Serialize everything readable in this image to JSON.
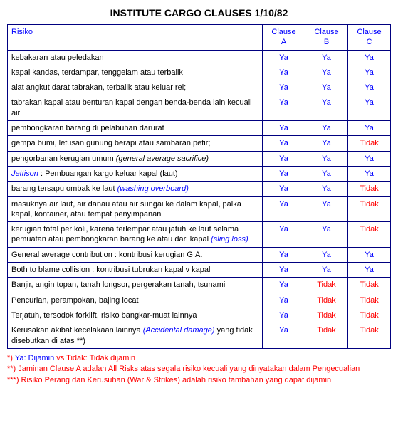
{
  "title": "INSTITUTE CARGO CLAUSES 1/10/82",
  "headers": {
    "risk": "Risiko",
    "clauseA": "Clause A",
    "clauseB": "Clause B",
    "clauseC": "Clause C"
  },
  "values": {
    "ya": "Ya",
    "tidak": "Tidak"
  },
  "rows": [
    {
      "risk_plain": "kebakaran atau peledakan",
      "a": "Ya",
      "b": "Ya",
      "c": "Ya"
    },
    {
      "risk_plain": "kapal kandas, terdampar, tenggelam atau terbalik",
      "a": "Ya",
      "b": "Ya",
      "c": "Ya"
    },
    {
      "risk_plain": "alat angkut darat tabrakan, terbalik atau keluar rel;",
      "a": "Ya",
      "b": "Ya",
      "c": "Ya"
    },
    {
      "risk_plain": "tabrakan kapal atau benturan kapal dengan benda-benda lain kecuali air",
      "a": "Ya",
      "b": "Ya",
      "c": "Ya"
    },
    {
      "risk_plain": "pembongkaran barang di pelabuhan darurat",
      "a": "Ya",
      "b": "Ya",
      "c": "Ya"
    },
    {
      "risk_plain": "gempa bumi, letusan gunung berapi atau sambaran petir;",
      "a": "Ya",
      "b": "Ya",
      "c": "Tidak"
    },
    {
      "risk_plain_part": "pengorbanan kerugian umum ",
      "risk_italic": "(general average sacrifice)",
      "a": "Ya",
      "b": "Ya",
      "c": "Ya"
    },
    {
      "risk_blue_italic": "Jettison",
      "risk_after": " : Pembuangan kargo keluar kapal (laut)",
      "a": "Ya",
      "b": "Ya",
      "c": "Ya"
    },
    {
      "risk_plain_part": "barang tersapu ombak ke laut ",
      "risk_blue_italic2": "(washing overboard)",
      "a": "Ya",
      "b": "Ya",
      "c": "Tidak"
    },
    {
      "risk_plain": "masuknya air laut, air danau atau air sungai ke dalam kapal, palka kapal, kontainer, atau tempat penyimpanan",
      "a": "Ya",
      "b": "Ya",
      "c": "Tidak"
    },
    {
      "risk_plain_part": "kerugian total per koli, karena terlempar atau jatuh ke laut selama pemuatan atau pembongkaran barang ke atau dari kapal ",
      "risk_blue_italic2": "(sling loss)",
      "a": "Ya",
      "b": "Ya",
      "c": "Tidak"
    },
    {
      "risk_plain": "General average contribution : kontribusi kerugian G.A.",
      "a": "Ya",
      "b": "Ya",
      "c": "Ya"
    },
    {
      "risk_plain": "Both to blame collision : kontribusi tubrukan kapal v kapal",
      "a": "Ya",
      "b": "Ya",
      "c": "Ya"
    },
    {
      "risk_plain": "Banjir, angin topan, tanah longsor, pergerakan tanah, tsunami",
      "a": "Ya",
      "b": "Tidak",
      "c": "Tidak"
    },
    {
      "risk_plain": "Pencurian, perampokan, bajing locat",
      "a": "Ya",
      "b": "Tidak",
      "c": "Tidak"
    },
    {
      "risk_plain": "Terjatuh, tersodok forklift, risiko bangkar-muat lainnya",
      "a": "Ya",
      "b": "Tidak",
      "c": "Tidak"
    },
    {
      "risk_plain_part": "Kerusakan akibat kecelakaan lainnya ",
      "risk_blue_italic2": "(Accidental damage)",
      "risk_after2": " yang tidak disebutkan di atas **)",
      "a": "Ya",
      "b": "Tidak",
      "c": "Tidak"
    }
  ],
  "footnotes": {
    "f1_prefix": "*) ",
    "f1_ya": "Ya: Dijamin",
    "f1_vs": " vs ",
    "f1_tidak": "Tidak: Tidak dijamin",
    "f2": "**) Jaminan Clause A adalah All Risks atas segala risiko kecuali yang dinyatakan dalam Pengecualian",
    "f3": "***) Risiko Perang dan Kerusuhan (War & Strikes) adalah risiko tambahan yang dapat dijamin"
  },
  "colors": {
    "border": "#000080",
    "blue": "#0000ff",
    "red": "#ff0000",
    "bg": "#ffffff"
  }
}
